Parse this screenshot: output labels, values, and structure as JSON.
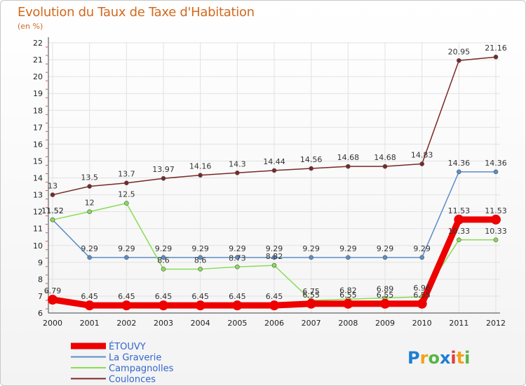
{
  "chart_data": {
    "type": "line",
    "title": "Evolution du Taux de Taxe d'Habitation",
    "subtitle": "(en %)",
    "xlabel": "",
    "ylabel": "",
    "x": [
      "2000",
      "2001",
      "2002",
      "2003",
      "2004",
      "2005",
      "2006",
      "2007",
      "2008",
      "2009",
      "2010",
      "2011",
      "2012"
    ],
    "ylim": [
      6,
      22
    ],
    "yticks": [
      6,
      7,
      8,
      9,
      10,
      11,
      12,
      13,
      14,
      15,
      16,
      17,
      18,
      19,
      20,
      21,
      22
    ],
    "grid": true,
    "legend": "bottom-left",
    "series": [
      {
        "name": "ÉTOUVY",
        "color": "#ee0000",
        "width": 9,
        "values": [
          6.79,
          6.45,
          6.45,
          6.45,
          6.45,
          6.45,
          6.45,
          6.55,
          6.55,
          6.55,
          6.55,
          11.53,
          11.53
        ],
        "labels": [
          "6.79",
          "6.45",
          "6.45",
          "6.45",
          "6.45",
          "6.45",
          "6.45",
          "6.55",
          "6.55",
          "6.55",
          "6.55",
          "11.53",
          "11.53"
        ]
      },
      {
        "name": "La Graverie",
        "color": "#5b8ec7",
        "width": 1.5,
        "values": [
          11.52,
          9.29,
          9.29,
          9.29,
          9.29,
          9.29,
          9.29,
          9.29,
          9.29,
          9.29,
          9.29,
          14.36,
          14.36
        ],
        "labels": [
          "11.52",
          "9.29",
          "9.29",
          "9.29",
          "9.29",
          "9.29",
          "9.29",
          "9.29",
          "9.29",
          "9.29",
          "9.29",
          "14.36",
          "14.36"
        ]
      },
      {
        "name": "Campagnolles",
        "color": "#88dd55",
        "width": 1.5,
        "values": [
          11.52,
          12,
          12.5,
          8.6,
          8.6,
          8.73,
          8.82,
          6.75,
          6.82,
          6.89,
          6.96,
          10.33,
          10.33
        ],
        "labels": [
          "11.52",
          "12",
          "12.5",
          "8.6",
          "8.6",
          "8.73",
          "8.82",
          "6.75",
          "6.82",
          "6.89",
          "6.96",
          "10.33",
          "10.33"
        ]
      },
      {
        "name": "Coulonces",
        "color": "#7a2828",
        "width": 1.5,
        "values": [
          13,
          13.5,
          13.7,
          13.97,
          14.16,
          14.3,
          14.44,
          14.56,
          14.68,
          14.68,
          14.83,
          20.95,
          21.16
        ],
        "labels": [
          "13",
          "13.5",
          "13.7",
          "13.97",
          "14.16",
          "14.3",
          "14.44",
          "14.56",
          "14.68",
          "14.68",
          "14.83",
          "20.95",
          "21.16"
        ]
      }
    ]
  },
  "logo": {
    "text": "Proxiti",
    "colors": [
      "#1f7fd1",
      "#f2a11d",
      "#55b646",
      "#1f7fd1",
      "#e23b3b",
      "#f2a11d",
      "#55b646"
    ]
  }
}
